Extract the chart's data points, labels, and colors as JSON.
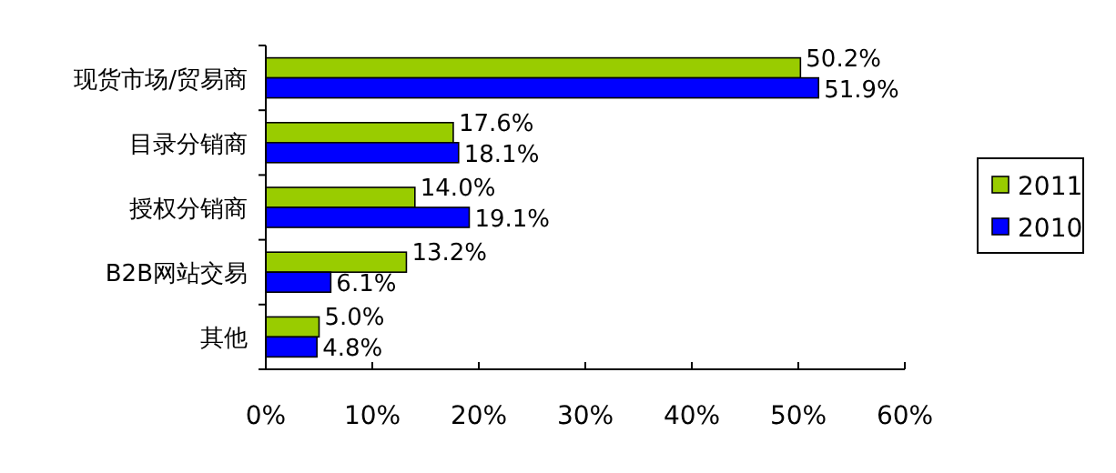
{
  "chart_data": {
    "type": "bar",
    "orientation": "horizontal",
    "categories": [
      "现货市场/贸易商",
      "目录分销商",
      "授权分销商",
      "B2B网站交易",
      "其他"
    ],
    "series": [
      {
        "name": "2011",
        "color": "#99cc00",
        "values": [
          50.2,
          17.6,
          14.0,
          13.2,
          5.0
        ],
        "value_labels": [
          "50.2%",
          "17.6%",
          "14.0%",
          "13.2%",
          "5.0%"
        ]
      },
      {
        "name": "2010",
        "color": "#0000ff",
        "values": [
          51.9,
          18.1,
          19.1,
          6.1,
          4.8
        ],
        "value_labels": [
          "51.9%",
          "18.1%",
          "19.1%",
          "6.1%",
          "4.8%"
        ]
      }
    ],
    "xlim": [
      0,
      60
    ],
    "xticks": [
      {
        "value": 0,
        "label": "0%"
      },
      {
        "value": 10,
        "label": "10%"
      },
      {
        "value": 20,
        "label": "20%"
      },
      {
        "value": 30,
        "label": "30%"
      },
      {
        "value": 40,
        "label": "40%"
      },
      {
        "value": 50,
        "label": "50%"
      },
      {
        "value": 60,
        "label": "60%"
      }
    ],
    "legend": "right"
  }
}
